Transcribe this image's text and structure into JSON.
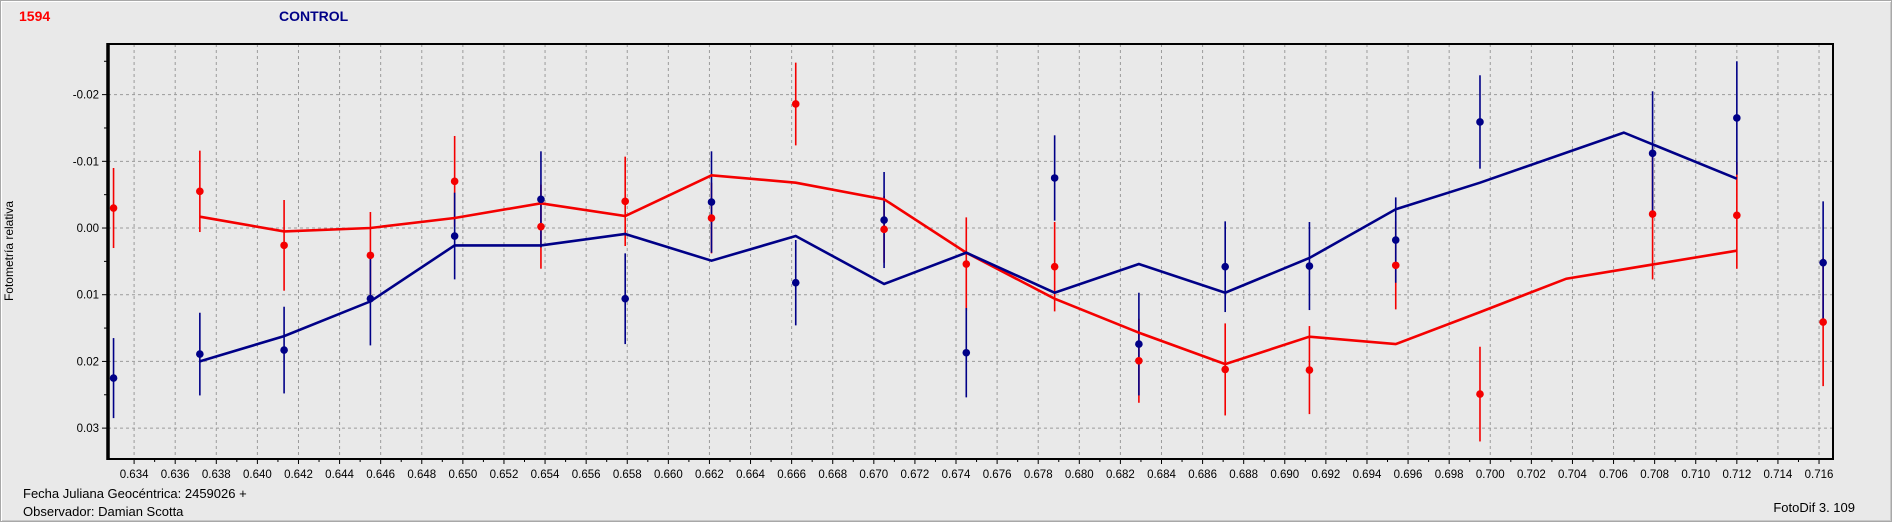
{
  "header": {
    "target_title": "1594",
    "control_title": "CONTROL",
    "target_title_color": "#ff0000",
    "control_title_color": "#000087"
  },
  "footer": {
    "julian_date": "Fecha Juliana Geocéntrica: 2459026 +",
    "observer": "Observador: Damian Scotta",
    "app_version": "FotoDif 3. 109"
  },
  "chart_data": {
    "type": "scatter",
    "title": "",
    "xlabel": "",
    "ylabel": "Fotometría relativa",
    "y_inverted": true,
    "grid": true,
    "gridline_color": "#9b9b9b",
    "xlim": [
      0.63273,
      0.71668
    ],
    "ylim": [
      -0.02759,
      0.03463
    ],
    "x_ticks": [
      0.634,
      0.636,
      0.638,
      0.64,
      0.642,
      0.644,
      0.646,
      0.648,
      0.65,
      0.652,
      0.654,
      0.656,
      0.658,
      0.66,
      0.662,
      0.664,
      0.666,
      0.668,
      0.67,
      0.672,
      0.674,
      0.676,
      0.678,
      0.68,
      0.682,
      0.684,
      0.686,
      0.688,
      0.69,
      0.692,
      0.694,
      0.696,
      0.698,
      0.7,
      0.702,
      0.704,
      0.706,
      0.708,
      0.71,
      0.712,
      0.714,
      0.716
    ],
    "y_ticks": [
      -0.02,
      -0.01,
      0.0,
      0.01,
      0.02,
      0.03
    ],
    "series": [
      {
        "name": "1594",
        "color": "#f40000",
        "marker": "circle",
        "x": [
          0.633,
          0.6372,
          0.6413,
          0.6455,
          0.6496,
          0.6538,
          0.6579,
          0.6621,
          0.6662,
          0.6705,
          0.6745,
          0.6788,
          0.6829,
          0.6871,
          0.6912,
          0.6954,
          0.6995,
          0.7079,
          0.712,
          0.7162
        ],
        "y": [
          -0.003,
          -0.0055,
          0.0026,
          0.0041,
          -0.007,
          -0.0002,
          -0.004,
          -0.0015,
          -0.0186,
          0.0002,
          0.0054,
          0.0058,
          0.0199,
          0.0212,
          0.0213,
          0.0056,
          0.0249,
          -0.0021,
          -0.0019,
          0.0141
        ],
        "err": [
          0.006,
          0.0061,
          0.0068,
          0.0065,
          0.0068,
          0.0063,
          0.0067,
          0.0053,
          0.0062,
          0.005,
          0.007,
          0.0067,
          0.0063,
          0.0069,
          0.0066,
          0.0066,
          0.0071,
          0.0098,
          0.008,
          0.0096
        ],
        "trend_line": {
          "x": [
            0.6372,
            0.6413,
            0.6455,
            0.6496,
            0.6538,
            0.6579,
            0.6621,
            0.6662,
            0.6705,
            0.6745,
            0.6788,
            0.6829,
            0.6871,
            0.6912,
            0.6954,
            0.6995,
            0.7037,
            0.712
          ],
          "y": [
            -0.0017,
            0.0005,
            0.0,
            -0.0015,
            -0.0037,
            -0.0018,
            -0.0079,
            -0.0068,
            -0.0043,
            0.0037,
            0.0106,
            0.0157,
            0.0204,
            0.0163,
            0.0174,
            0.0126,
            0.0076,
            0.0034
          ]
        }
      },
      {
        "name": "CONTROL",
        "color": "#000087",
        "marker": "circle",
        "x": [
          0.633,
          0.6372,
          0.6413,
          0.6455,
          0.6496,
          0.6538,
          0.6579,
          0.6621,
          0.6662,
          0.6705,
          0.6745,
          0.6788,
          0.6829,
          0.6871,
          0.6912,
          0.6954,
          0.6995,
          0.7079,
          0.712,
          0.7162
        ],
        "y": [
          0.0225,
          0.0189,
          0.0183,
          0.0106,
          0.0012,
          -0.0043,
          0.0106,
          -0.0039,
          0.0082,
          -0.0012,
          0.0187,
          -0.0075,
          0.0174,
          0.0058,
          0.0057,
          0.0018,
          -0.0159,
          -0.0112,
          -0.0165,
          0.0052
        ],
        "err": [
          0.006,
          0.0062,
          0.0065,
          0.007,
          0.0065,
          0.0072,
          0.0068,
          0.0076,
          0.0064,
          0.0072,
          0.0067,
          0.0064,
          0.0077,
          0.0068,
          0.0066,
          0.0064,
          0.007,
          0.0093,
          0.0085,
          0.0092
        ],
        "trend_line": {
          "x": [
            0.6372,
            0.6413,
            0.6455,
            0.6496,
            0.6538,
            0.6579,
            0.6621,
            0.6662,
            0.6705,
            0.6745,
            0.6788,
            0.6829,
            0.6871,
            0.6912,
            0.6954,
            0.6995,
            0.7065,
            0.712
          ],
          "y": [
            0.02,
            0.0162,
            0.011,
            0.0026,
            0.0026,
            0.0009,
            0.0049,
            0.0012,
            0.0084,
            0.0037,
            0.0097,
            0.0054,
            0.0097,
            0.0045,
            -0.0028,
            -0.0068,
            -0.0143,
            -0.0074
          ]
        }
      }
    ]
  }
}
